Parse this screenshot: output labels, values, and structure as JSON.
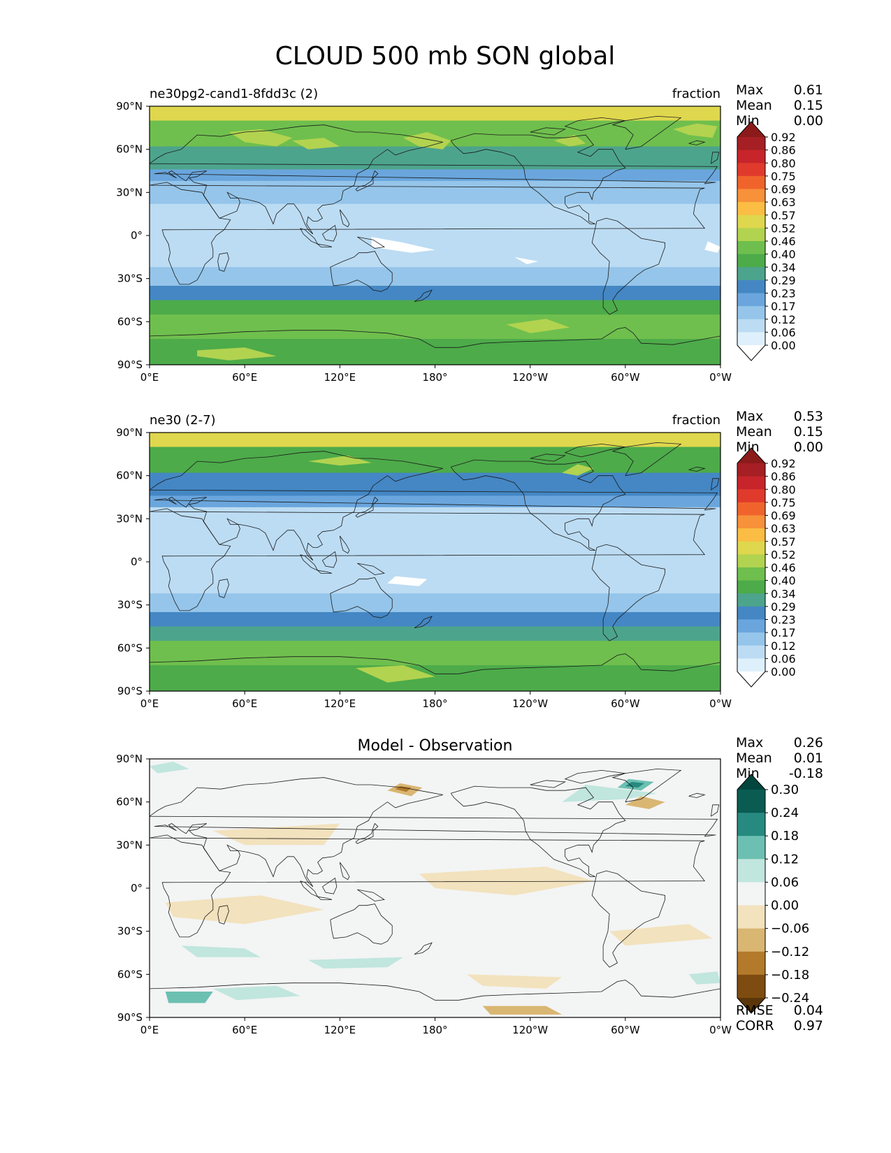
{
  "chart_data": {
    "type": "heatmap",
    "title": "CLOUD 500 mb SON global",
    "x_ticks": [
      "0°E",
      "60°E",
      "120°E",
      "180°",
      "120°W",
      "60°W",
      "0°W"
    ],
    "y_ticks": [
      "90°N",
      "60°N",
      "30°N",
      "0°",
      "30°S",
      "60°S",
      "90°S"
    ],
    "xlim": [
      0,
      360
    ],
    "ylim": [
      -90,
      90
    ],
    "panels": [
      {
        "id": "test",
        "left_title": "ne30pg2-cand1-8fdd3c (2)",
        "right_title": "fraction",
        "center_title": "",
        "stats": [
          {
            "label": "Max",
            "value": "0.61"
          },
          {
            "label": "Mean",
            "value": "0.15"
          },
          {
            "label": "Min",
            "value": "0.00"
          }
        ],
        "colorbar": {
          "levels": [
            "0.92",
            "0.86",
            "0.80",
            "0.75",
            "0.69",
            "0.63",
            "0.57",
            "0.52",
            "0.46",
            "0.40",
            "0.34",
            "0.29",
            "0.23",
            "0.17",
            "0.12",
            "0.06",
            "0.00"
          ],
          "colors": [
            "#8b1a1a",
            "#a51f24",
            "#c7252b",
            "#e03a2c",
            "#f0642c",
            "#f7913a",
            "#fbbd43",
            "#dfd74d",
            "#b2d34f",
            "#6fbf4e",
            "#4dab4a",
            "#4da48c",
            "#4487c4",
            "#6aa6dd",
            "#95c5ea",
            "#bcdcf3",
            "#def0fb",
            "#ffffff"
          ]
        },
        "footer_stats": []
      },
      {
        "id": "reference",
        "left_title": "ne30 (2-7)",
        "right_title": "fraction",
        "center_title": "",
        "stats": [
          {
            "label": "Max",
            "value": "0.53"
          },
          {
            "label": "Mean",
            "value": "0.15"
          },
          {
            "label": "Min",
            "value": "0.00"
          }
        ],
        "colorbar": {
          "levels": [
            "0.92",
            "0.86",
            "0.80",
            "0.75",
            "0.69",
            "0.63",
            "0.57",
            "0.52",
            "0.46",
            "0.40",
            "0.34",
            "0.29",
            "0.23",
            "0.17",
            "0.12",
            "0.06",
            "0.00"
          ],
          "colors": [
            "#8b1a1a",
            "#a51f24",
            "#c7252b",
            "#e03a2c",
            "#f0642c",
            "#f7913a",
            "#fbbd43",
            "#dfd74d",
            "#b2d34f",
            "#6fbf4e",
            "#4dab4a",
            "#4da48c",
            "#4487c4",
            "#6aa6dd",
            "#95c5ea",
            "#bcdcf3",
            "#def0fb",
            "#ffffff"
          ]
        },
        "footer_stats": []
      },
      {
        "id": "difference",
        "left_title": "",
        "right_title": "",
        "center_title": "Model - Observation",
        "stats": [
          {
            "label": "Max",
            "value": "0.26"
          },
          {
            "label": "Mean",
            "value": "0.01"
          },
          {
            "label": "Min",
            "value": "-0.18"
          }
        ],
        "colorbar": {
          "levels": [
            "0.30",
            "0.24",
            "0.18",
            "0.12",
            "0.06",
            "0.00",
            "−0.06",
            "−0.12",
            "−0.18",
            "−0.24"
          ],
          "colors": [
            "#01463e",
            "#0a5c52",
            "#268a80",
            "#6cc0b2",
            "#c0e6de",
            "#f3f4f4",
            "#f2e2bd",
            "#d9b672",
            "#b27a2a",
            "#7e4c10",
            "#5a3609"
          ]
        },
        "footer_stats": [
          {
            "label": "RMSE",
            "value": "0.04"
          },
          {
            "label": "CORR",
            "value": "0.97"
          }
        ]
      }
    ]
  }
}
